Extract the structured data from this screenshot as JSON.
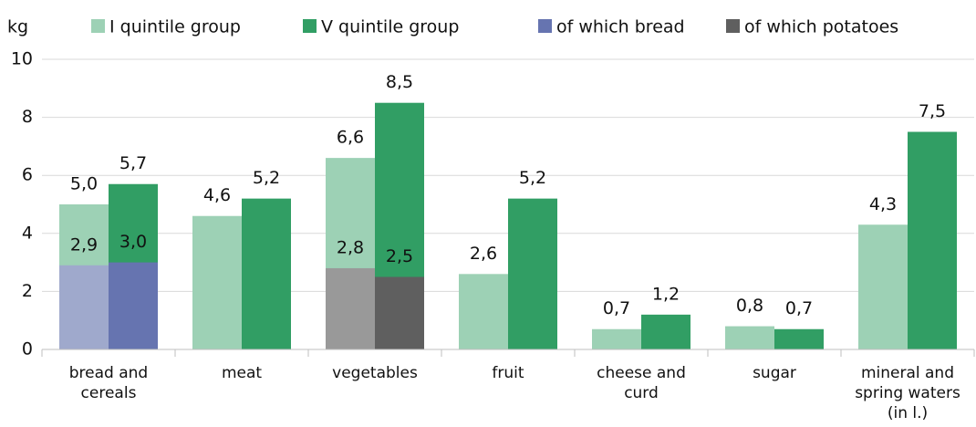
{
  "chart_data": {
    "type": "bar",
    "ylabel": "kg",
    "categories": [
      "bread and cereals",
      "meat",
      "vegetables",
      "fruit",
      "cheese and curd",
      "sugar",
      "mineral and spring waters (in l.)"
    ],
    "series": [
      {
        "name": "I quintile group",
        "color": "#9dd1b5",
        "values": [
          5.0,
          4.6,
          6.6,
          2.6,
          0.7,
          0.8,
          4.3
        ],
        "value_labels": [
          "5,0",
          "4,6",
          "6,6",
          "2,6",
          "0,7",
          "0,8",
          "4,3"
        ]
      },
      {
        "name": "V quintile group",
        "color": "#319e64",
        "values": [
          5.7,
          5.2,
          8.5,
          5.2,
          1.2,
          0.7,
          7.5
        ],
        "value_labels": [
          "5,7",
          "5,2",
          "8,5",
          "5,2",
          "1,2",
          "0,7",
          "7,5"
        ]
      },
      {
        "name": "of which bread",
        "color": "#6674b0",
        "parts": [
          {
            "color": "#9fa9cc",
            "values": [
              2.9,
              null,
              null,
              null,
              null,
              null,
              null
            ],
            "value_labels": [
              "2,9",
              null,
              null,
              null,
              null,
              null,
              null
            ]
          },
          {
            "color": "#6674b0",
            "values": [
              3.0,
              null,
              null,
              null,
              null,
              null,
              null
            ],
            "value_labels": [
              "3,0",
              null,
              null,
              null,
              null,
              null,
              null
            ]
          }
        ]
      },
      {
        "name": "of which potatoes",
        "color": "#5f5f5f",
        "parts": [
          {
            "color": "#999999",
            "values": [
              null,
              null,
              2.8,
              null,
              null,
              null,
              null
            ],
            "value_labels": [
              null,
              null,
              "2,8",
              null,
              null,
              null,
              null
            ]
          },
          {
            "color": "#5f5f5f",
            "values": [
              null,
              null,
              2.5,
              null,
              null,
              null,
              null
            ],
            "value_labels": [
              null,
              null,
              "2,5",
              null,
              null,
              null,
              null
            ]
          }
        ]
      }
    ],
    "ylim": [
      0,
      10
    ],
    "yticks": [
      0,
      2,
      4,
      6,
      8,
      10
    ],
    "grid": true
  }
}
